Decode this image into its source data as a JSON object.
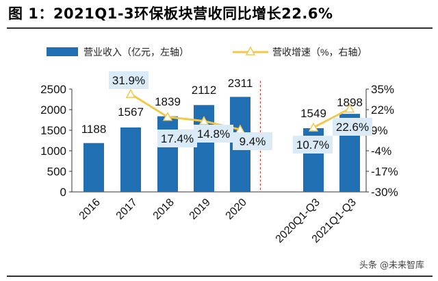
{
  "title": "图 1：2021Q1-3环保板块营收同比增长22.6%",
  "watermark": "头条 @未来智库",
  "colors": {
    "bar": "#1f6fb2",
    "line": "#f2c84b",
    "label_box": "#dbeaf7",
    "dash": "#c0392b"
  },
  "chart_data": {
    "type": "bar",
    "categories": [
      "2016",
      "2017",
      "2018",
      "2019",
      "2020",
      "",
      "2020Q1-Q3",
      "2021Q1-Q3"
    ],
    "series": [
      {
        "name": "营业收入（亿元，左轴）",
        "type": "bar",
        "axis": "left",
        "values": [
          1188,
          1567,
          1839,
          2112,
          2311,
          null,
          1549,
          1898
        ],
        "labels": [
          "1188",
          "1567",
          "1839",
          "2112",
          "2311",
          "",
          "1549",
          "1898"
        ]
      },
      {
        "name": "营收增速（%，右轴）",
        "type": "line",
        "axis": "right",
        "segments": [
          [
            1,
            4
          ],
          [
            6,
            7
          ]
        ],
        "values": [
          null,
          31.9,
          17.4,
          14.8,
          9.4,
          null,
          10.7,
          22.6
        ],
        "labels": [
          "",
          "31.9%",
          "17.4%",
          "14.8%",
          "9.4%",
          "",
          "10.7%",
          "22.6%"
        ]
      }
    ],
    "y_left": {
      "min": 0,
      "max": 2500,
      "ticks": [
        "0",
        "500",
        "1000",
        "1500",
        "2000",
        "2500"
      ]
    },
    "y_right": {
      "min": -30,
      "max": 35,
      "ticks": [
        "-30%",
        "-17%",
        "-4%",
        "9%",
        "22%",
        "35%"
      ]
    },
    "legend_position": "top",
    "separator_after_category": 4,
    "grid": false
  }
}
